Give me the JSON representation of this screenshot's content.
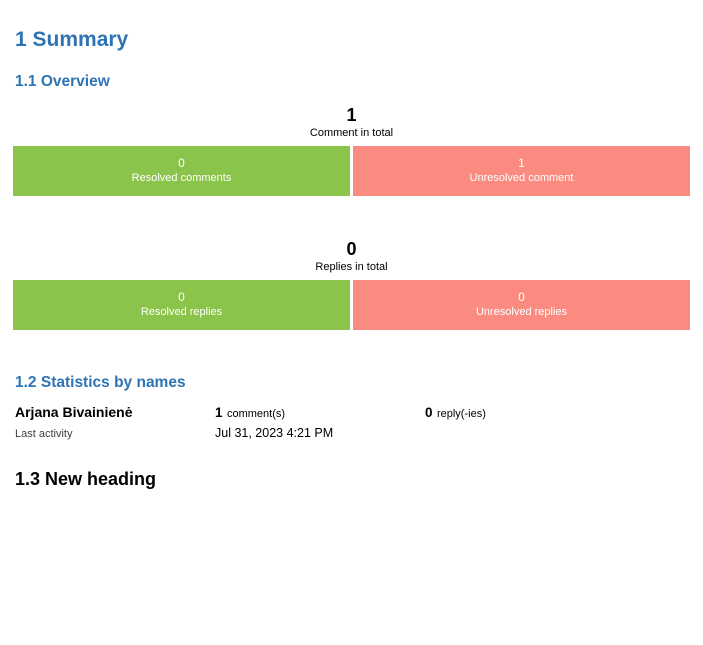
{
  "headings": {
    "summary": "1 Summary",
    "overview": "1.1 Overview",
    "statistics": "1.2 Statistics by names",
    "new_heading": "1.3 New heading"
  },
  "colors": {
    "heading_blue": "#2e74b5",
    "resolved_green": "#8bc44a",
    "unresolved_red": "#fb8b80",
    "bar_text": "#ffffff"
  },
  "charts": {
    "comments": {
      "total": "1",
      "total_label": "Comment in total",
      "resolved_value": "0",
      "resolved_label": "Resolved comments",
      "unresolved_value": "1",
      "unresolved_label": "Unresolved comment",
      "resolved_width_pct": 50,
      "unresolved_width_pct": 50
    },
    "replies": {
      "total": "0",
      "total_label": "Replies in total",
      "resolved_value": "0",
      "resolved_label": "Resolved replies",
      "unresolved_value": "0",
      "unresolved_label": "Unresolved replies",
      "resolved_width_pct": 50,
      "unresolved_width_pct": 50
    }
  },
  "statistics": {
    "name": "Arjana Bivainienė",
    "comments_count": "1",
    "comments_unit": "comment(s)",
    "replies_count": "0",
    "replies_unit": "reply(-ies)",
    "last_activity_label": "Last activity",
    "last_activity_value": "Jul 31, 2023 4:21 PM"
  }
}
